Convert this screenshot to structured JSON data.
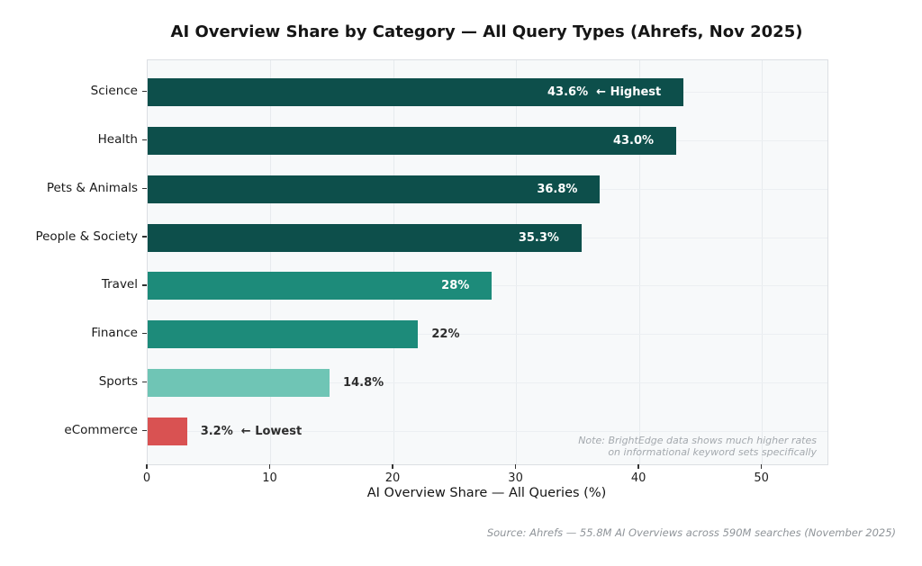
{
  "figure": {
    "source_note": "Source: Ahrefs — 55.8M AI Overviews across 590M searches (November 2025)"
  },
  "chart_data": {
    "type": "bar",
    "orientation": "horizontal",
    "title": "AI Overview Share by Category — All Query Types (Ahrefs, Nov 2025)",
    "categories": [
      "Science",
      "Health",
      "Pets & Animals",
      "People & Society",
      "Travel",
      "Finance",
      "Sports",
      "eCommerce"
    ],
    "values": [
      43.6,
      43.0,
      36.8,
      35.3,
      28,
      22,
      14.8,
      3.2
    ],
    "bar_labels": [
      "43.6%  ← Highest",
      "43.0%",
      "36.8%",
      "35.3%",
      "28%",
      "22%",
      "14.8%",
      "3.2%  ← Lowest"
    ],
    "label_inside": [
      true,
      true,
      true,
      true,
      true,
      false,
      false,
      false
    ],
    "bar_colors": [
      "#0d4f4b",
      "#0d4f4b",
      "#0d4f4b",
      "#0d4f4b",
      "#1d8b7a",
      "#1d8b7a",
      "#6fc5b5",
      "#d95252"
    ],
    "xlabel": "AI Overview Share — All Queries (%)",
    "xticks": [
      0,
      10,
      20,
      30,
      40,
      50
    ],
    "xtick_labels": [
      "0",
      "10",
      "20",
      "30",
      "40",
      "50"
    ],
    "xlim": [
      0,
      55.3
    ],
    "grid": true,
    "legend": null,
    "note_line1": "Note: BrightEdge data shows much higher rates",
    "note_line2": "on informational keyword sets specifically",
    "colors": {
      "dark_teal": "#0d4f4b",
      "teal": "#1d8b7a",
      "light_teal": "#6fc5b5",
      "red": "#d95252",
      "plot_background": "#f7f9fa",
      "figure_background": "#ffffff"
    }
  }
}
